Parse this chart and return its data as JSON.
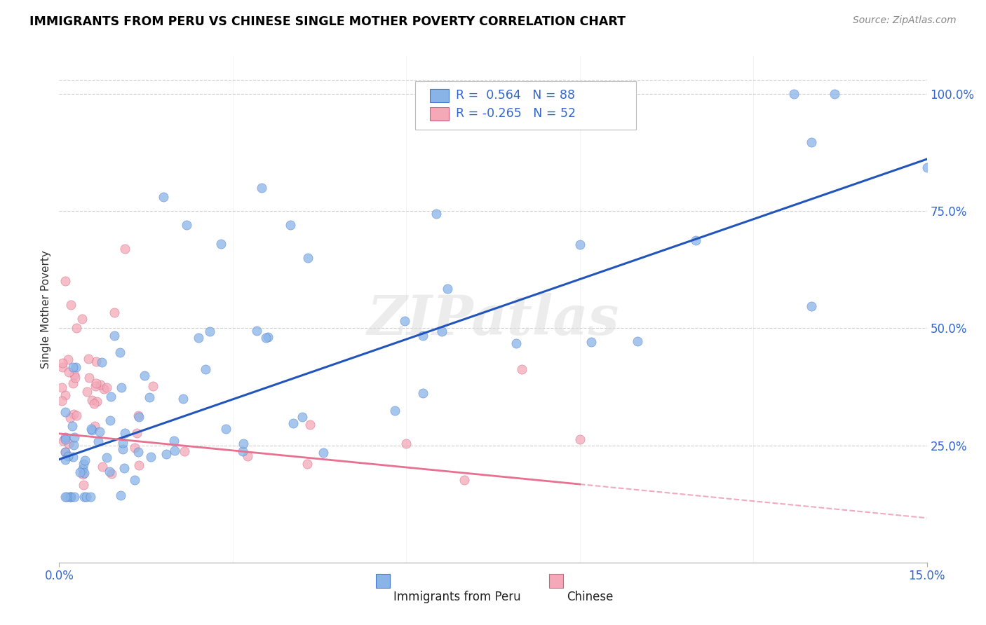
{
  "title": "IMMIGRANTS FROM PERU VS CHINESE SINGLE MOTHER POVERTY CORRELATION CHART",
  "source": "Source: ZipAtlas.com",
  "ylabel": "Single Mother Poverty",
  "yticks": [
    "25.0%",
    "50.0%",
    "75.0%",
    "100.0%"
  ],
  "ytick_vals": [
    0.25,
    0.5,
    0.75,
    1.0
  ],
  "xlim": [
    0.0,
    0.15
  ],
  "ylim": [
    0.0,
    1.08
  ],
  "blue_R": 0.564,
  "blue_N": 88,
  "pink_R": -0.265,
  "pink_N": 52,
  "blue_color": "#89B4E8",
  "pink_color": "#F4A8B8",
  "blue_line_color": "#2255BB",
  "pink_line_color": "#E87090",
  "watermark": "ZIPatlas",
  "legend_blue_label": "Immigrants from Peru",
  "legend_pink_label": "Chinese"
}
